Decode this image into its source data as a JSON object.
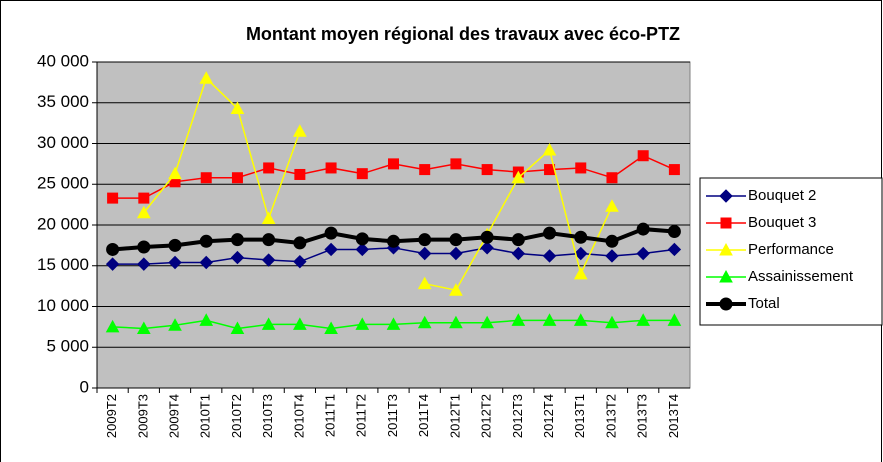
{
  "chart_data": {
    "type": "line",
    "title": "Montant moyen régional des travaux avec éco-PTZ",
    "categories": [
      "2009T2",
      "2009T3",
      "2009T4",
      "2010T1",
      "2010T2",
      "2010T3",
      "2010T4",
      "2011T1",
      "2011T2",
      "2011T3",
      "2011T4",
      "2012T1",
      "2012T2",
      "2012T3",
      "2012T4",
      "2013T1",
      "2013T2",
      "2013T3",
      "2013T4"
    ],
    "series": [
      {
        "name": "Bouquet 2",
        "color": "#000080",
        "marker": "diamond",
        "values": [
          15200,
          15200,
          15400,
          15400,
          16000,
          15700,
          15500,
          17000,
          17000,
          17200,
          16500,
          16500,
          17200,
          16500,
          16200,
          16500,
          16200,
          16500,
          17000
        ]
      },
      {
        "name": "Bouquet 3",
        "color": "#ff0000",
        "marker": "square",
        "values": [
          23300,
          23300,
          25300,
          25800,
          25800,
          27000,
          26200,
          27000,
          26300,
          27500,
          26800,
          27500,
          26800,
          26500,
          26800,
          27000,
          25800,
          28500,
          26800
        ]
      },
      {
        "name": "Performance",
        "color": "#ffff00",
        "marker": "triangle",
        "values": [
          null,
          21500,
          26300,
          38000,
          34300,
          20800,
          31500,
          null,
          null,
          null,
          12800,
          12000,
          18800,
          25800,
          29200,
          14000,
          22300,
          null,
          null
        ]
      },
      {
        "name": "Assainissement",
        "color": "#00ff00",
        "marker": "triangle",
        "values": [
          7500,
          7300,
          7700,
          8300,
          7300,
          7800,
          7800,
          7300,
          7800,
          7800,
          8000,
          8000,
          8000,
          8300,
          8300,
          8300,
          8000,
          8300,
          8300
        ]
      },
      {
        "name": "Total",
        "color": "#000000",
        "marker": "circle",
        "width": 4,
        "values": [
          17000,
          17300,
          17500,
          18000,
          18200,
          18200,
          17800,
          19000,
          18300,
          18000,
          18200,
          18200,
          18500,
          18200,
          19000,
          18500,
          18000,
          19500,
          19200
        ]
      }
    ],
    "ylim": [
      0,
      40000
    ],
    "yticks": [
      0,
      {
        "value": 5000,
        "label": "5 000"
      },
      {
        "value": 10000,
        "label": "10 000"
      },
      {
        "value": 15000,
        "label": "15 000"
      },
      {
        "value": 20000,
        "label": "20 000"
      },
      {
        "value": 25000,
        "label": "25 000"
      },
      {
        "value": 30000,
        "label": "30 000"
      },
      {
        "value": 35000,
        "label": "35 000"
      },
      {
        "value": 40000,
        "label": "40 000"
      }
    ],
    "grid": true,
    "plot_background": "#c0c0c0",
    "legend": "right"
  }
}
